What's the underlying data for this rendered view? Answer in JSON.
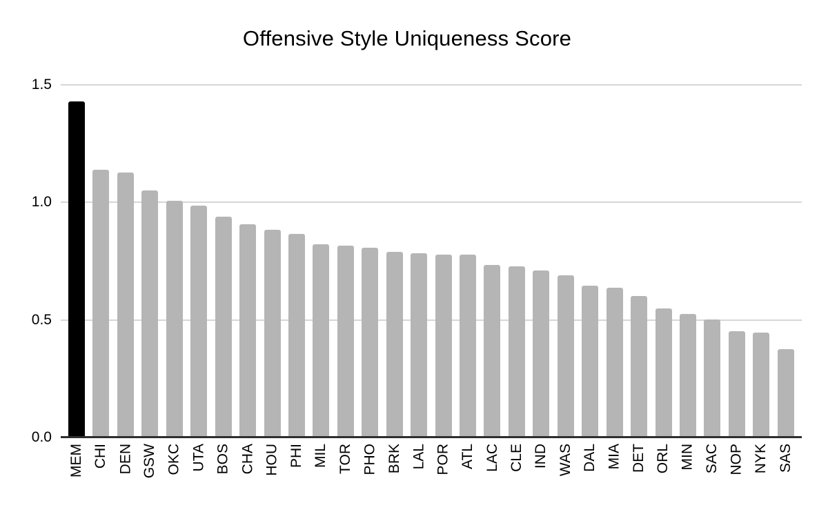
{
  "chart_data": {
    "type": "bar",
    "title": "Offensive Style Uniqueness Score",
    "xlabel": "",
    "ylabel": "",
    "ylim": [
      0,
      1.5
    ],
    "y_ticks": [
      "0.0",
      "0.5",
      "1.0",
      "1.5"
    ],
    "grid": "horizontal",
    "legend": "none",
    "categories": [
      "MEM",
      "CHI",
      "DEN",
      "GSW",
      "OKC",
      "UTA",
      "BOS",
      "CHA",
      "HOU",
      "PHI",
      "MIL",
      "TOR",
      "PHO",
      "BRK",
      "LAL",
      "POR",
      "ATL",
      "LAC",
      "CLE",
      "IND",
      "WAS",
      "DAL",
      "MIA",
      "DET",
      "ORL",
      "MIN",
      "SAC",
      "NOP",
      "NYK",
      "SAS"
    ],
    "values": [
      1.43,
      1.14,
      1.127,
      1.05,
      1.006,
      0.985,
      0.938,
      0.906,
      0.884,
      0.867,
      0.823,
      0.815,
      0.806,
      0.791,
      0.784,
      0.779,
      0.778,
      0.735,
      0.727,
      0.709,
      0.691,
      0.646,
      0.638,
      0.602,
      0.549,
      0.526,
      0.503,
      0.452,
      0.445,
      0.375
    ],
    "highlight_index": 0,
    "colors": {
      "bar": "#b5b5b5",
      "highlight_bar": "#000000",
      "gridline": "#d6d6d6",
      "axis_line": "#2e2e2e",
      "text": "#000000",
      "background": "#ffffff"
    }
  }
}
